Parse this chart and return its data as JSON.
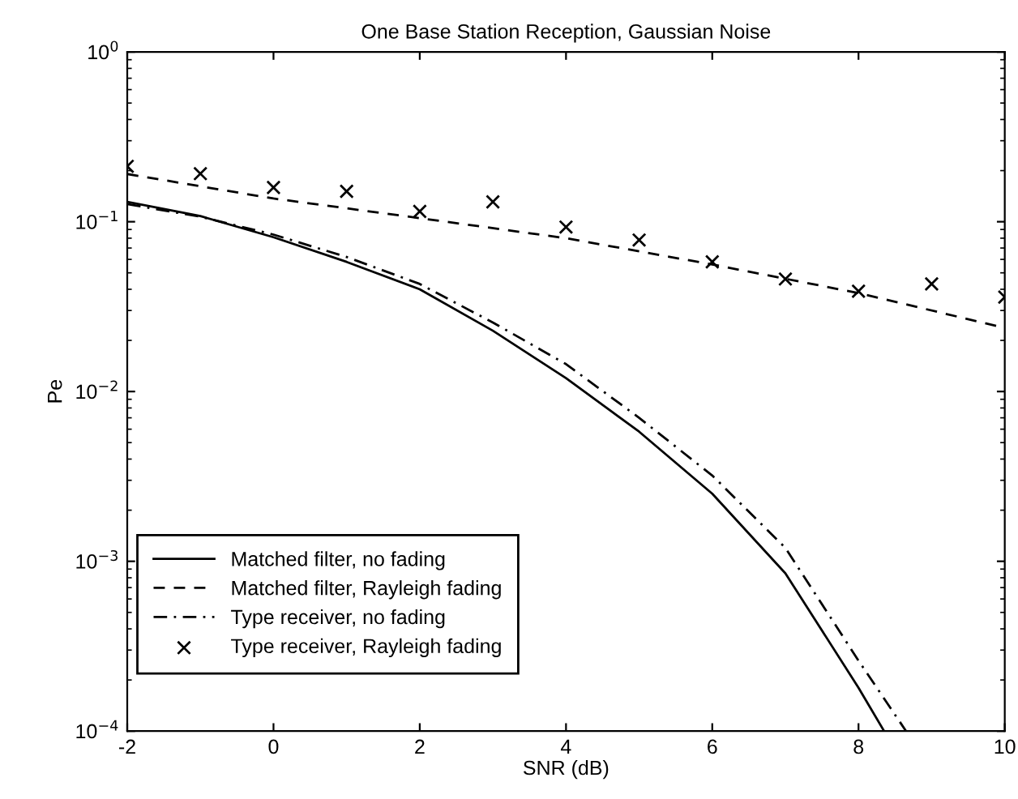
{
  "chart_data": {
    "type": "line",
    "title": "One Base Station Reception, Gaussian Noise",
    "xlabel": "SNR (dB)",
    "ylabel": "Pe",
    "log": "y",
    "xlim": [
      -2,
      10
    ],
    "ylim": [
      0.0001,
      1
    ],
    "xticks": [
      -2,
      0,
      2,
      4,
      6,
      8,
      10
    ],
    "yticks": [
      {
        "value": 0.0001,
        "label": "10$^{−4}$"
      },
      {
        "value": 0.001,
        "label": "10$^{−3}$"
      },
      {
        "value": 0.01,
        "label": "10$^{−2}$"
      },
      {
        "value": 0.1,
        "label": "10$^{−1}$"
      },
      {
        "value": 1,
        "label": "10$^{0}$"
      }
    ],
    "grid": false,
    "legend": "bottom left",
    "series": [
      {
        "name": "Matched filter, no fading",
        "line_style": "solid",
        "color": "#000000",
        "x": [
          -2,
          -1,
          0,
          1,
          2,
          3,
          4,
          5,
          6,
          7,
          8,
          8.35
        ],
        "values": [
          0.131,
          0.108,
          0.081,
          0.058,
          0.04,
          0.0228,
          0.012,
          0.0058,
          0.0025,
          0.00085,
          0.00018,
          0.0001
        ]
      },
      {
        "name": "Matched filter, Rayleigh fading",
        "line_style": "dashed",
        "color": "#000000",
        "x": [
          -2,
          0,
          2,
          4,
          6,
          8,
          10
        ],
        "values": [
          0.191,
          0.137,
          0.105,
          0.08,
          0.056,
          0.038,
          0.0237
        ]
      },
      {
        "name": "Type receiver, no fading",
        "line_style": "dashdot",
        "color": "#000000",
        "x": [
          -2,
          -1,
          0,
          1,
          2,
          3,
          4,
          5,
          6,
          7,
          8,
          8.65
        ],
        "values": [
          0.127,
          0.107,
          0.084,
          0.062,
          0.043,
          0.0255,
          0.0145,
          0.007,
          0.0032,
          0.0012,
          0.00026,
          0.0001
        ]
      },
      {
        "name": "Type receiver, Rayleigh fading",
        "type": "scatter",
        "marker": "cross",
        "color": "#000000",
        "x": [
          -2,
          -1,
          0,
          1,
          2,
          3,
          4,
          5,
          6,
          7,
          8,
          9,
          10
        ],
        "values": [
          0.212,
          0.192,
          0.159,
          0.151,
          0.115,
          0.131,
          0.093,
          0.078,
          0.058,
          0.046,
          0.039,
          0.043,
          0.036
        ]
      }
    ]
  }
}
